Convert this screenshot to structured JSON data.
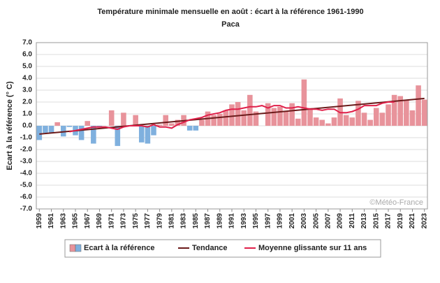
{
  "chart_data": {
    "type": "bar",
    "title": "Température minimale mensuelle en août : écart à la référence 1961-1990",
    "subtitle": "Paca",
    "ylabel": "Ecart à la référence (° C)",
    "annotation": "©Météo-France",
    "grid": true,
    "legend": "bottom",
    "xlim": [
      1958.5,
      2023.5
    ],
    "xticks": [
      1959,
      1961,
      1963,
      1965,
      1967,
      1969,
      1971,
      1973,
      1975,
      1977,
      1979,
      1981,
      1983,
      1985,
      1987,
      1989,
      1991,
      1993,
      1995,
      1997,
      1999,
      2001,
      2003,
      2005,
      2007,
      2009,
      2011,
      2013,
      2015,
      2017,
      2019,
      2021,
      2023
    ],
    "ylim": [
      -7,
      7
    ],
    "yticks": [
      {
        "value": -7,
        "label": "-7.0"
      },
      {
        "value": -6,
        "label": "-6.0"
      },
      {
        "value": -5,
        "label": "-5.0"
      },
      {
        "value": -4,
        "label": "-4.0"
      },
      {
        "value": -3,
        "label": "-3.0"
      },
      {
        "value": -2,
        "label": "-2.0"
      },
      {
        "value": -1,
        "label": "-1.0"
      },
      {
        "value": 0,
        "label": "0.0"
      },
      {
        "value": 1,
        "label": "1.0"
      },
      {
        "value": 2,
        "label": "2.0"
      },
      {
        "value": 3,
        "label": "3.0"
      },
      {
        "value": 4,
        "label": "4.0"
      },
      {
        "value": 5,
        "label": "5.0"
      },
      {
        "value": 6,
        "label": "6.0"
      },
      {
        "value": 7,
        "label": "7.0"
      }
    ],
    "series": [
      {
        "name": "Ecart à la référence",
        "type": "bar",
        "color": "#e8939b",
        "negative_color": "#7fb0de",
        "x": [
          1959,
          1960,
          1961,
          1962,
          1963,
          1964,
          1965,
          1966,
          1967,
          1968,
          1969,
          1970,
          1971,
          1972,
          1973,
          1974,
          1975,
          1976,
          1977,
          1978,
          1979,
          1980,
          1981,
          1982,
          1983,
          1984,
          1985,
          1986,
          1987,
          1988,
          1989,
          1990,
          1991,
          1992,
          1993,
          1994,
          1995,
          1996,
          1997,
          1998,
          1999,
          2000,
          2001,
          2002,
          2003,
          2004,
          2005,
          2006,
          2007,
          2008,
          2009,
          2010,
          2011,
          2012,
          2013,
          2014,
          2015,
          2016,
          2017,
          2018,
          2019,
          2020,
          2021,
          2022,
          2023
        ],
        "values": [
          -1.2,
          -0.6,
          -0.6,
          0.3,
          -0.9,
          -0.1,
          -0.8,
          -1.2,
          0.4,
          -1.5,
          -0.1,
          0.0,
          1.3,
          -1.7,
          1.1,
          0.0,
          0.9,
          -1.4,
          -1.5,
          -0.8,
          0.1,
          0.9,
          0.2,
          0.5,
          0.9,
          -0.4,
          -0.4,
          0.5,
          1.2,
          0.9,
          1.0,
          1.3,
          1.8,
          2.0,
          1.3,
          2.6,
          1.2,
          0.0,
          1.9,
          1.5,
          1.6,
          1.2,
          1.9,
          0.6,
          3.9,
          1.5,
          0.7,
          0.5,
          0.2,
          0.7,
          2.3,
          0.9,
          0.7,
          2.1,
          1.1,
          0.5,
          1.5,
          1.1,
          1.8,
          2.6,
          2.5,
          2.2,
          1.3,
          3.4,
          2.2
        ]
      },
      {
        "name": "Tendance",
        "type": "line",
        "color": "#6b1a1a",
        "x": [
          1959,
          2023
        ],
        "values": [
          -0.7,
          2.3
        ]
      },
      {
        "name": "Moyenne glissante sur 11 ans",
        "type": "line",
        "color": "#e0204a",
        "x": [
          1964,
          1965,
          1966,
          1967,
          1968,
          1969,
          1970,
          1971,
          1972,
          1973,
          1974,
          1975,
          1976,
          1977,
          1978,
          1979,
          1980,
          1981,
          1982,
          1983,
          1984,
          1985,
          1986,
          1987,
          1988,
          1989,
          1990,
          1991,
          1992,
          1993,
          1994,
          1995,
          1996,
          1997,
          1998,
          1999,
          2000,
          2001,
          2002,
          2003,
          2004,
          2005,
          2006,
          2007,
          2008,
          2009,
          2010,
          2011,
          2012,
          2013,
          2014,
          2015,
          2016,
          2017,
          2018
        ],
        "values": [
          -0.5,
          -0.4,
          -0.3,
          -0.2,
          -0.1,
          -0.1,
          -0.1,
          -0.2,
          -0.3,
          -0.1,
          0,
          0,
          0,
          -0.1,
          0.1,
          -0.1,
          -0.1,
          -0.2,
          0.1,
          0.3,
          0.5,
          0.6,
          0.7,
          0.9,
          1.0,
          1.1,
          1.3,
          1.4,
          1.4,
          1.5,
          1.6,
          1.6,
          1.7,
          1.5,
          1.7,
          1.7,
          1.5,
          1.5,
          1.6,
          1.5,
          1.4,
          1.4,
          1.3,
          1.4,
          1.4,
          1.1,
          1.1,
          1.2,
          1.4,
          1.7,
          1.7,
          1.7,
          1.9,
          2.0,
          2.0
        ]
      }
    ]
  }
}
